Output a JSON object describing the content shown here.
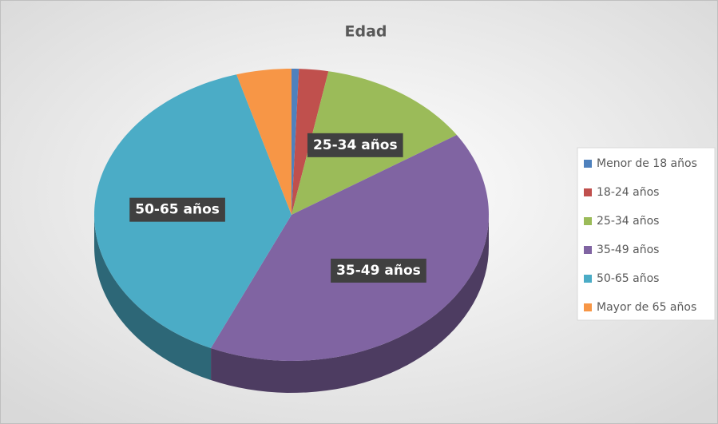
{
  "chart_data": {
    "type": "pie",
    "title": "Edad",
    "categories": [
      "Menor de 18 años",
      "18-24 años",
      "25-34 años",
      "35-49 años",
      "50-65 años",
      "Mayor de 65 años"
    ],
    "values": [
      0.6,
      2.4,
      12.8,
      40.9,
      38.8,
      4.5
    ],
    "colors": [
      "#4f81bd",
      "#c0504d",
      "#9bbb59",
      "#8064a2",
      "#4bacc6",
      "#f79646"
    ],
    "data_labels": [
      null,
      null,
      "25-34 años",
      "35-49 años",
      "50-65 años",
      null
    ],
    "legend": "right"
  }
}
